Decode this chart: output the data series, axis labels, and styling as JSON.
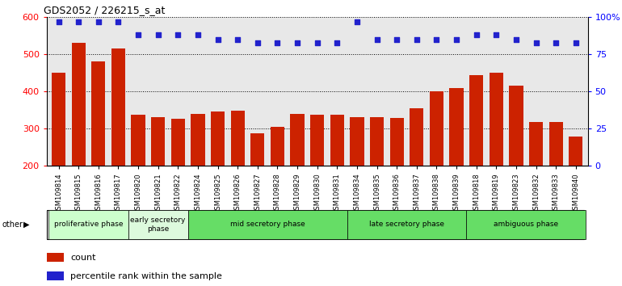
{
  "title": "GDS2052 / 226215_s_at",
  "categories": [
    "GSM109814",
    "GSM109815",
    "GSM109816",
    "GSM109817",
    "GSM109820",
    "GSM109821",
    "GSM109822",
    "GSM109824",
    "GSM109825",
    "GSM109826",
    "GSM109827",
    "GSM109828",
    "GSM109829",
    "GSM109830",
    "GSM109831",
    "GSM109834",
    "GSM109835",
    "GSM109836",
    "GSM109837",
    "GSM109838",
    "GSM109839",
    "GSM109818",
    "GSM109819",
    "GSM109823",
    "GSM109832",
    "GSM109833",
    "GSM109840"
  ],
  "bar_values": [
    450,
    530,
    480,
    515,
    338,
    330,
    327,
    340,
    346,
    348,
    287,
    305,
    340,
    338,
    338,
    330,
    332,
    328,
    355,
    400,
    410,
    445,
    450,
    415,
    318,
    318,
    280
  ],
  "percentile_values": [
    97,
    97,
    97,
    97,
    88,
    88,
    88,
    88,
    85,
    85,
    83,
    83,
    83,
    83,
    83,
    97,
    85,
    85,
    85,
    85,
    85,
    88,
    88,
    85,
    83,
    83,
    83
  ],
  "bar_color": "#cc2200",
  "dot_color": "#2222cc",
  "ylim_left": [
    200,
    600
  ],
  "ylim_right": [
    0,
    100
  ],
  "yticks_left": [
    200,
    300,
    400,
    500,
    600
  ],
  "yticks_right": [
    0,
    25,
    50,
    75,
    100
  ],
  "ytick_labels_right": [
    "0",
    "25",
    "50",
    "75",
    "100%"
  ],
  "phases": [
    {
      "label": "proliferative phase",
      "start": 0,
      "end": 4,
      "color": "#ccffcc"
    },
    {
      "label": "early secretory\nphase",
      "start": 4,
      "end": 7,
      "color": "#ddfadd"
    },
    {
      "label": "mid secretory phase",
      "start": 7,
      "end": 15,
      "color": "#66dd66"
    },
    {
      "label": "late secretory phase",
      "start": 15,
      "end": 21,
      "color": "#66dd66"
    },
    {
      "label": "ambiguous phase",
      "start": 21,
      "end": 27,
      "color": "#66dd66"
    }
  ],
  "legend_count_label": "count",
  "legend_pct_label": "percentile rank within the sample",
  "background_color": "#e8e8e8",
  "white_bg": "#ffffff"
}
